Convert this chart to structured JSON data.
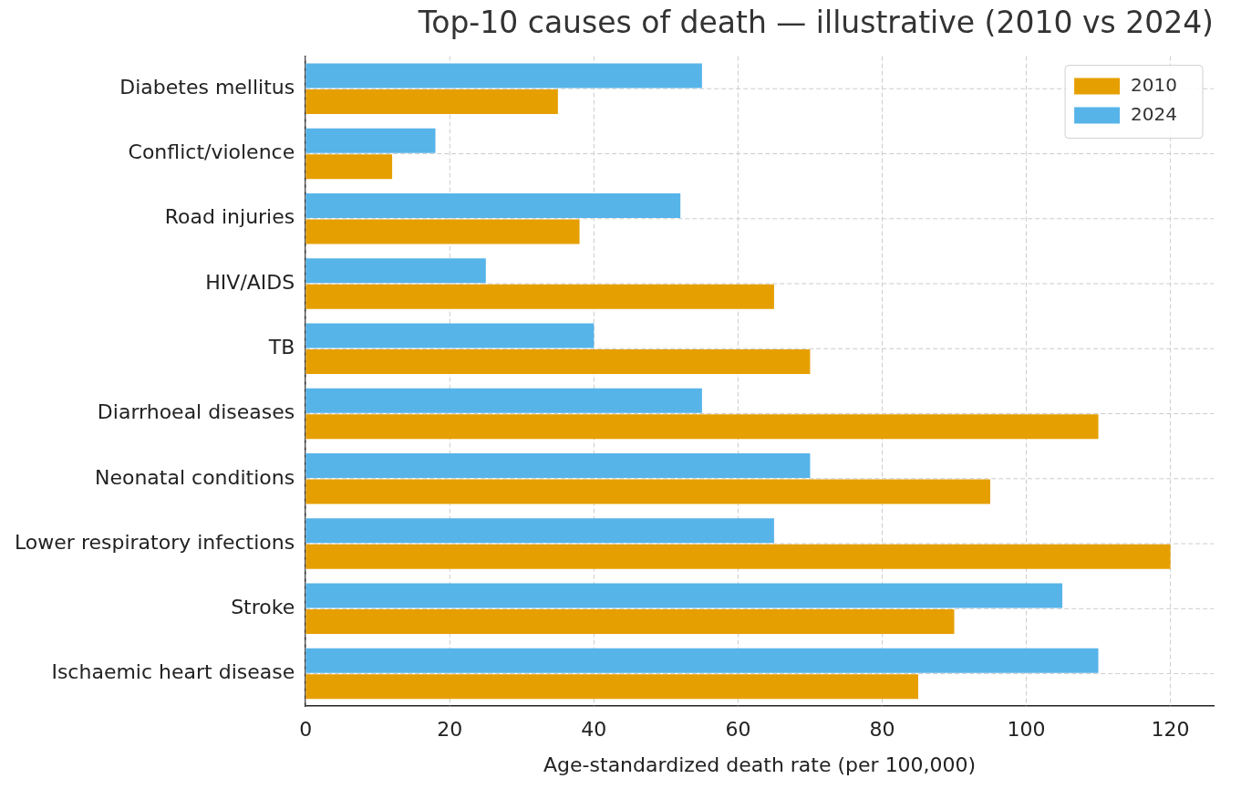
{
  "chart_data": {
    "type": "bar",
    "orientation": "horizontal",
    "title": "Top-10 causes of death — illustrative (2010 vs 2024)",
    "xlabel": "Age-standardized death rate (per 100,000)",
    "categories": [
      "Diabetes mellitus",
      "Conflict/violence",
      "Road injuries",
      "HIV/AIDS",
      "TB",
      "Diarrhoeal diseases",
      "Neonatal conditions",
      "Lower respiratory infections",
      "Stroke",
      "Ischaemic heart disease"
    ],
    "series": [
      {
        "name": "2010",
        "color": "#e69f00",
        "values": [
          35,
          12,
          38,
          65,
          70,
          110,
          95,
          120,
          90,
          85
        ]
      },
      {
        "name": "2024",
        "color": "#56b4e9",
        "values": [
          55,
          18,
          52,
          25,
          40,
          55,
          70,
          65,
          105,
          110
        ]
      }
    ],
    "xlim": [
      0,
      126
    ],
    "xticks": [
      0,
      20,
      40,
      60,
      80,
      100,
      120
    ],
    "grid": true,
    "legend": "top right"
  }
}
